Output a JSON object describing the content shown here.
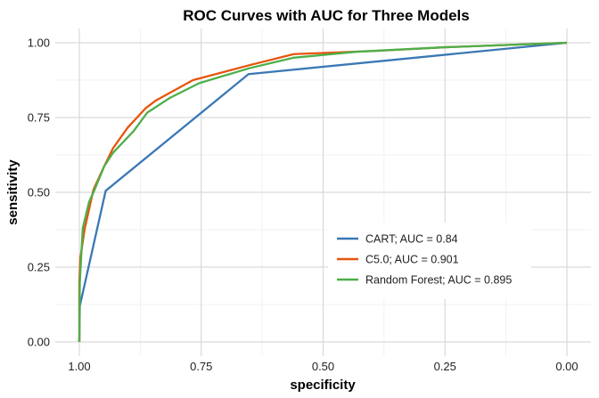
{
  "chart_data": {
    "type": "line",
    "title": "ROC Curves with AUC for Three Models",
    "xlabel": "specificity",
    "ylabel": "sensitivity",
    "xlim": [
      1.0,
      0.0
    ],
    "ylim": [
      0.0,
      1.0
    ],
    "x_reversed": true,
    "grid": true,
    "xticks": [
      "1.00",
      "0.75",
      "0.50",
      "0.25",
      "0.00"
    ],
    "xtick_values": [
      1.0,
      0.75,
      0.5,
      0.25,
      0.0
    ],
    "yticks": [
      "0.00",
      "0.25",
      "0.50",
      "0.75",
      "1.00"
    ],
    "ytick_values": [
      0.0,
      0.25,
      0.5,
      0.75,
      1.0
    ],
    "legend_position": "bottom-right",
    "series": [
      {
        "name": "CART; AUC = 0.84",
        "color": "#3A78B5",
        "specificity": [
          1.0,
          0.999,
          0.946,
          0.653,
          0.0
        ],
        "sensitivity": [
          0.0,
          0.12,
          0.505,
          0.895,
          1.0
        ]
      },
      {
        "name": "C5.0; AUC = 0.901",
        "color": "#E6550D",
        "specificity": [
          1.0,
          1.0,
          0.998,
          0.989,
          0.971,
          0.949,
          0.931,
          0.901,
          0.864,
          0.843,
          0.767,
          0.651,
          0.56,
          0.4,
          0.25,
          0.0
        ],
        "sensitivity": [
          0.0,
          0.2,
          0.28,
          0.378,
          0.509,
          0.587,
          0.647,
          0.716,
          0.781,
          0.807,
          0.875,
          0.925,
          0.962,
          0.972,
          0.985,
          1.0
        ]
      },
      {
        "name": "Random Forest; AUC = 0.895",
        "color": "#4DAF4A",
        "specificity": [
          1.0,
          0.999,
          0.993,
          0.98,
          0.971,
          0.949,
          0.931,
          0.888,
          0.861,
          0.815,
          0.754,
          0.651,
          0.56,
          0.43,
          0.25,
          0.0
        ],
        "sensitivity": [
          0.0,
          0.2,
          0.38,
          0.468,
          0.5,
          0.587,
          0.632,
          0.706,
          0.766,
          0.815,
          0.865,
          0.915,
          0.95,
          0.97,
          0.985,
          1.0
        ]
      }
    ]
  }
}
